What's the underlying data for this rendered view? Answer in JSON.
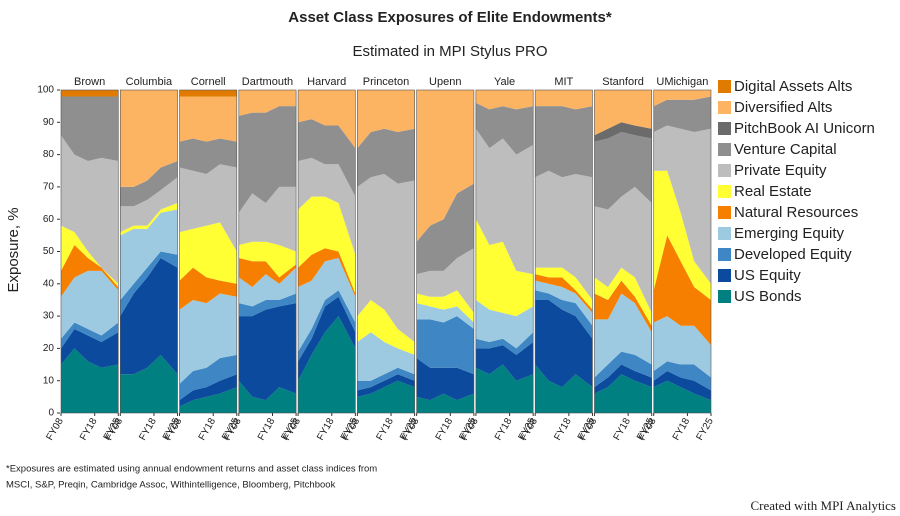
{
  "chart_data": {
    "type": "area",
    "stacked": true,
    "title": "Asset Class Exposures of Elite Endowments*",
    "subtitle": "Estimated in MPI Stylus PRO",
    "ylabel": "Exposure, %",
    "ylim": [
      0,
      100
    ],
    "yticks": [
      0,
      10,
      20,
      30,
      40,
      50,
      60,
      70,
      80,
      90,
      100
    ],
    "x": [
      2008,
      2012,
      2016,
      2020,
      2025
    ],
    "xlim": [
      2008,
      2025
    ],
    "xticks": [
      {
        "value": 2008,
        "label": "FY08"
      },
      {
        "value": 2018,
        "label": "FY18"
      },
      {
        "value": 2025,
        "label": "FY25"
      }
    ],
    "series": [
      {
        "name": "US Bonds",
        "color": "#008080"
      },
      {
        "name": "US Equity",
        "color": "#0b4a9c"
      },
      {
        "name": "Developed Equity",
        "color": "#3e86c4"
      },
      {
        "name": "Emerging Equity",
        "color": "#9ecae1"
      },
      {
        "name": "Natural Resources",
        "color": "#f77f00"
      },
      {
        "name": "Real Estate",
        "color": "#ffff33"
      },
      {
        "name": "Private Equity",
        "color": "#bdbdbd"
      },
      {
        "name": "Venture Capital",
        "color": "#8f8f8f"
      },
      {
        "name": "PitchBook AI Unicorn",
        "color": "#6b6b6b"
      },
      {
        "name": "Diversified Alts",
        "color": "#fdb462"
      },
      {
        "name": "Digital Assets Alts",
        "color": "#e07b00"
      }
    ],
    "panels": [
      {
        "title": "Brown",
        "values": [
          [
            15,
            20,
            16,
            14,
            15
          ],
          [
            5,
            6,
            8,
            8,
            10
          ],
          [
            3,
            2,
            2,
            2,
            3
          ],
          [
            13,
            14,
            18,
            20,
            10
          ],
          [
            8,
            10,
            4,
            1,
            1
          ],
          [
            14,
            4,
            2,
            0,
            1
          ],
          [
            28,
            24,
            28,
            34,
            38
          ],
          [
            12,
            18,
            20,
            19,
            20
          ],
          [
            0,
            0,
            0,
            0,
            0
          ],
          [
            0,
            0,
            0,
            0,
            0
          ],
          [
            2,
            2,
            2,
            2,
            2
          ]
        ]
      },
      {
        "title": "Columbia",
        "values": [
          [
            12,
            12,
            14,
            18,
            12
          ],
          [
            18,
            25,
            28,
            30,
            33
          ],
          [
            5,
            3,
            3,
            2,
            4
          ],
          [
            20,
            17,
            12,
            12,
            14
          ],
          [
            0,
            0,
            0,
            0,
            0
          ],
          [
            1,
            1,
            1,
            1,
            2
          ],
          [
            8,
            6,
            8,
            6,
            8
          ],
          [
            6,
            6,
            6,
            7,
            5
          ],
          [
            0,
            0,
            0,
            0,
            0
          ],
          [
            30,
            30,
            28,
            24,
            22
          ],
          [
            0,
            0,
            0,
            0,
            0
          ]
        ]
      },
      {
        "title": "Cornell",
        "values": [
          [
            2,
            4,
            5,
            6,
            8
          ],
          [
            2,
            3,
            3,
            4,
            4
          ],
          [
            5,
            6,
            6,
            7,
            6
          ],
          [
            23,
            22,
            20,
            20,
            18
          ],
          [
            9,
            10,
            8,
            4,
            4
          ],
          [
            15,
            12,
            16,
            18,
            10
          ],
          [
            20,
            18,
            16,
            18,
            26
          ],
          [
            8,
            10,
            10,
            8,
            8
          ],
          [
            0,
            0,
            0,
            0,
            0
          ],
          [
            14,
            13,
            14,
            13,
            14
          ],
          [
            2,
            2,
            2,
            2,
            2
          ]
        ]
      },
      {
        "title": "Dartmouth",
        "values": [
          [
            10,
            5,
            4,
            8,
            6
          ],
          [
            20,
            25,
            28,
            25,
            28
          ],
          [
            4,
            3,
            3,
            2,
            3
          ],
          [
            8,
            6,
            8,
            5,
            8
          ],
          [
            6,
            8,
            4,
            2,
            1
          ],
          [
            4,
            6,
            6,
            10,
            4
          ],
          [
            10,
            15,
            12,
            18,
            20
          ],
          [
            30,
            25,
            28,
            25,
            25
          ],
          [
            0,
            0,
            0,
            0,
            0
          ],
          [
            8,
            7,
            7,
            5,
            5
          ],
          [
            0,
            0,
            0,
            0,
            0
          ]
        ]
      },
      {
        "title": "Harvard",
        "values": [
          [
            10,
            18,
            25,
            30,
            20
          ],
          [
            6,
            5,
            8,
            6,
            5
          ],
          [
            3,
            3,
            2,
            2,
            3
          ],
          [
            20,
            15,
            12,
            10,
            8
          ],
          [
            6,
            8,
            4,
            2,
            1
          ],
          [
            18,
            18,
            16,
            15,
            12
          ],
          [
            15,
            12,
            10,
            12,
            18
          ],
          [
            12,
            12,
            12,
            12,
            15
          ],
          [
            0,
            0,
            0,
            0,
            0
          ],
          [
            10,
            9,
            11,
            11,
            18
          ],
          [
            0,
            0,
            0,
            0,
            0
          ]
        ]
      },
      {
        "title": "Princeton",
        "values": [
          [
            5,
            6,
            8,
            10,
            8
          ],
          [
            2,
            2,
            2,
            2,
            2
          ],
          [
            3,
            2,
            2,
            2,
            2
          ],
          [
            12,
            15,
            10,
            6,
            6
          ],
          [
            0,
            0,
            0,
            0,
            0
          ],
          [
            8,
            10,
            10,
            6,
            4
          ],
          [
            40,
            38,
            42,
            45,
            50
          ],
          [
            12,
            14,
            14,
            16,
            16
          ],
          [
            0,
            0,
            0,
            0,
            0
          ],
          [
            18,
            13,
            12,
            13,
            12
          ],
          [
            0,
            0,
            0,
            0,
            0
          ]
        ]
      },
      {
        "title": "Upenn",
        "values": [
          [
            5,
            4,
            6,
            4,
            6
          ],
          [
            12,
            10,
            8,
            10,
            6
          ],
          [
            12,
            15,
            14,
            16,
            14
          ],
          [
            5,
            4,
            4,
            3,
            2
          ],
          [
            0,
            0,
            0,
            0,
            0
          ],
          [
            3,
            3,
            4,
            5,
            3
          ],
          [
            6,
            8,
            8,
            10,
            20
          ],
          [
            10,
            14,
            16,
            20,
            20
          ],
          [
            0,
            0,
            0,
            0,
            0
          ],
          [
            47,
            42,
            40,
            32,
            29
          ],
          [
            0,
            0,
            0,
            0,
            0
          ]
        ]
      },
      {
        "title": "Yale",
        "values": [
          [
            14,
            12,
            15,
            10,
            12
          ],
          [
            6,
            8,
            6,
            8,
            10
          ],
          [
            3,
            2,
            2,
            2,
            3
          ],
          [
            12,
            10,
            8,
            10,
            8
          ],
          [
            0,
            0,
            0,
            0,
            0
          ],
          [
            25,
            20,
            22,
            14,
            10
          ],
          [
            28,
            30,
            32,
            36,
            40
          ],
          [
            8,
            12,
            10,
            14,
            12
          ],
          [
            0,
            0,
            0,
            0,
            0
          ],
          [
            4,
            6,
            5,
            6,
            5
          ],
          [
            0,
            0,
            0,
            0,
            0
          ]
        ]
      },
      {
        "title": "MIT",
        "values": [
          [
            15,
            10,
            8,
            12,
            8
          ],
          [
            20,
            25,
            24,
            18,
            15
          ],
          [
            3,
            2,
            3,
            4,
            4
          ],
          [
            3,
            3,
            4,
            3,
            4
          ],
          [
            2,
            2,
            3,
            1,
            1
          ],
          [
            2,
            3,
            3,
            4,
            3
          ],
          [
            28,
            30,
            28,
            32,
            38
          ],
          [
            22,
            20,
            22,
            20,
            22
          ],
          [
            0,
            0,
            0,
            0,
            0
          ],
          [
            5,
            5,
            5,
            6,
            5
          ],
          [
            0,
            0,
            0,
            0,
            0
          ]
        ]
      },
      {
        "title": "Stanford",
        "values": [
          [
            6,
            8,
            12,
            10,
            8
          ],
          [
            2,
            3,
            3,
            3,
            3
          ],
          [
            3,
            4,
            4,
            5,
            4
          ],
          [
            18,
            14,
            18,
            16,
            10
          ],
          [
            8,
            6,
            4,
            2,
            2
          ],
          [
            5,
            4,
            4,
            6,
            4
          ],
          [
            22,
            24,
            22,
            28,
            34
          ],
          [
            20,
            22,
            20,
            16,
            20
          ],
          [
            2,
            3,
            3,
            3,
            3
          ],
          [
            14,
            12,
            10,
            11,
            12
          ],
          [
            0,
            0,
            0,
            0,
            0
          ]
        ]
      },
      {
        "title": "UMichigan",
        "values": [
          [
            8,
            10,
            8,
            6,
            4
          ],
          [
            2,
            3,
            3,
            4,
            3
          ],
          [
            3,
            3,
            4,
            5,
            4
          ],
          [
            15,
            14,
            12,
            12,
            10
          ],
          [
            10,
            25,
            20,
            12,
            14
          ],
          [
            37,
            20,
            15,
            8,
            5
          ],
          [
            12,
            14,
            26,
            40,
            48
          ],
          [
            8,
            8,
            9,
            10,
            10
          ],
          [
            0,
            0,
            0,
            0,
            0
          ],
          [
            5,
            3,
            3,
            3,
            2
          ],
          [
            0,
            0,
            0,
            0,
            0
          ]
        ]
      }
    ],
    "footnote": [
      "*Exposures are estimated using annual endowment returns and asset class indices from",
      "MSCI, S&P, Preqin, Cambridge Assoc, Withintelligence, Bloomberg, Pitchbook"
    ],
    "credit": "Created with MPI Analytics"
  }
}
